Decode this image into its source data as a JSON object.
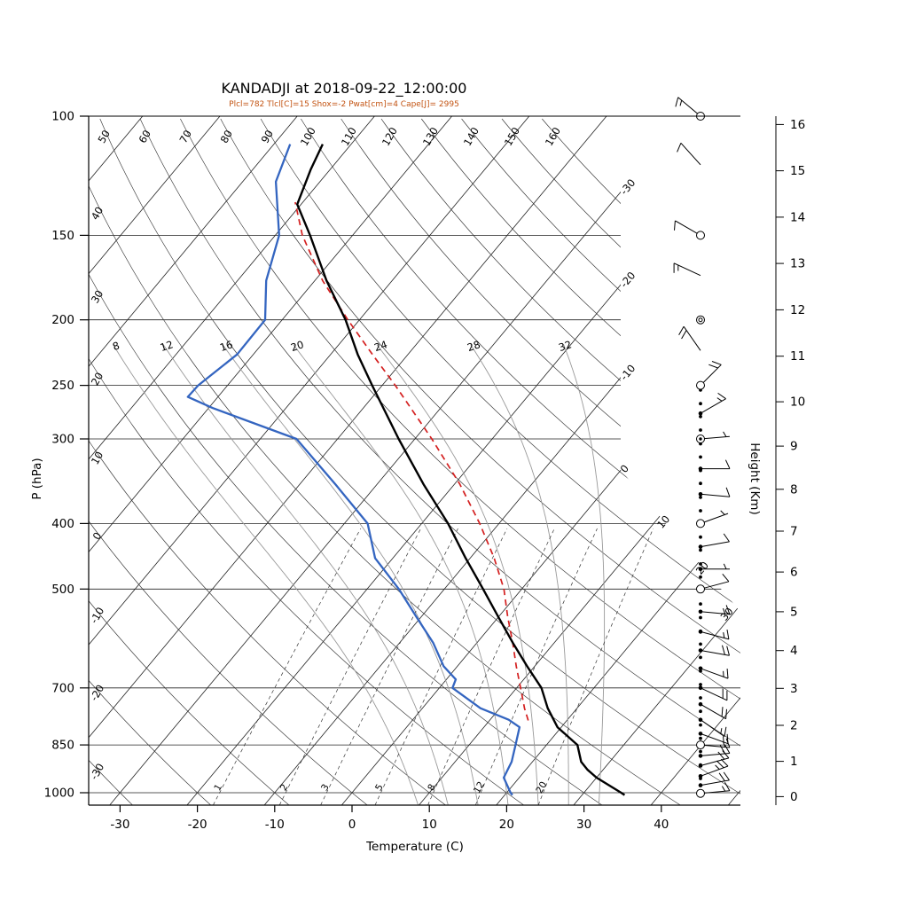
{
  "header": {
    "title": "KANDADJI at 2018-09-22_12:00:00",
    "subtitle": "Plcl=782 Tlcl[C]=15 Shox=-2 Pwat[cm]=4 Cape[J]= 2995",
    "subtitle_color": "#c35413"
  },
  "chart_data": {
    "type": "skewt-log-p-sounding",
    "title": "KANDADJI at 2018-09-22_12:00:00",
    "station": "KANDADJI",
    "valid_time": "2018-09-22_12:00:00",
    "params": {
      "Plcl_hPa": 782,
      "Tlcl_C": 15,
      "Shox": -2,
      "Pwat_cm": 4,
      "Cape_J": 2995
    },
    "xlabel": "Temperature (C)",
    "ylabel_left": "P (hPa)",
    "ylabel_right": "Height (Km)",
    "pressure_ticks_hPa": [
      100,
      150,
      200,
      250,
      300,
      400,
      500,
      700,
      850,
      1000
    ],
    "temperature_ticks_C": [
      -30,
      -20,
      -10,
      0,
      10,
      20,
      30,
      40
    ],
    "height_ticks_km": [
      0,
      1,
      2,
      3,
      4,
      5,
      6,
      7,
      8,
      9,
      10,
      11,
      12,
      13,
      14,
      15,
      16
    ],
    "isotherm_grid_range_C": [
      -110,
      60,
      10
    ],
    "dry_adiabat_range_C": [
      -30,
      160,
      10
    ],
    "isotherm_labels_right_C": [
      -30,
      -20,
      -10,
      0,
      10,
      20,
      30
    ],
    "dry_adiabat_labels_top_C": [
      50,
      60,
      70,
      80,
      90,
      100,
      110,
      120,
      130,
      140,
      150,
      160
    ],
    "dry_adiabat_labels_left_C": [
      40,
      30,
      20,
      10,
      0,
      -10,
      -20,
      -30
    ],
    "moist_adiabat_labels_C": [
      8,
      12,
      16,
      20,
      24,
      28,
      32
    ],
    "mixing_ratio_labels_gkg": [
      1,
      2,
      3,
      5,
      8,
      12,
      20
    ],
    "temperature_profile_p_t": [
      [
        1008,
        35.5
      ],
      [
        1000,
        34.8
      ],
      [
        950,
        30.0
      ],
      [
        925,
        28.0
      ],
      [
        900,
        26.3
      ],
      [
        850,
        24.0
      ],
      [
        800,
        19.5
      ],
      [
        750,
        16.2
      ],
      [
        700,
        13.2
      ],
      [
        650,
        9.0
      ],
      [
        600,
        4.6
      ],
      [
        550,
        0.0
      ],
      [
        500,
        -5.0
      ],
      [
        450,
        -10.6
      ],
      [
        400,
        -16.6
      ],
      [
        350,
        -24.0
      ],
      [
        300,
        -32.1
      ],
      [
        250,
        -41.3
      ],
      [
        225,
        -46.5
      ],
      [
        200,
        -51.8
      ],
      [
        175,
        -58.5
      ],
      [
        150,
        -65.5
      ],
      [
        135,
        -70.5
      ],
      [
        120,
        -72.5
      ],
      [
        110,
        -73.7
      ]
    ],
    "dewpoint_profile_p_t": [
      [
        1008,
        21.0
      ],
      [
        1000,
        20.5
      ],
      [
        950,
        18.0
      ],
      [
        900,
        17.3
      ],
      [
        850,
        16.0
      ],
      [
        800,
        14.6
      ],
      [
        780,
        12.4
      ],
      [
        750,
        7.5
      ],
      [
        700,
        1.7
      ],
      [
        680,
        1.2
      ],
      [
        650,
        -1.8
      ],
      [
        600,
        -5.7
      ],
      [
        550,
        -10.6
      ],
      [
        500,
        -15.9
      ],
      [
        450,
        -22.3
      ],
      [
        400,
        -27.0
      ],
      [
        350,
        -35.4
      ],
      [
        300,
        -45.3
      ],
      [
        270,
        -59.5
      ],
      [
        260,
        -63.9
      ],
      [
        250,
        -63.8
      ],
      [
        225,
        -62.1
      ],
      [
        200,
        -62.2
      ],
      [
        175,
        -66.3
      ],
      [
        150,
        -69.5
      ],
      [
        125,
        -75.7
      ],
      [
        110,
        -77.9
      ]
    ],
    "parcel_profile_p_t": [
      [
        782,
        15.0
      ],
      [
        750,
        13.2
      ],
      [
        700,
        10.5
      ],
      [
        650,
        7.6
      ],
      [
        600,
        4.6
      ],
      [
        550,
        1.2
      ],
      [
        500,
        -2.3
      ],
      [
        450,
        -6.9
      ],
      [
        400,
        -12.5
      ],
      [
        350,
        -19.3
      ],
      [
        300,
        -27.8
      ],
      [
        250,
        -38.3
      ],
      [
        225,
        -44.6
      ],
      [
        200,
        -51.5
      ],
      [
        175,
        -59.0
      ],
      [
        150,
        -66.5
      ],
      [
        134,
        -71.0
      ]
    ],
    "wind_barbs": [
      {
        "p": 100,
        "spd_kt": 15,
        "dir_deg": 310,
        "marker": "circle"
      },
      {
        "p": 118,
        "spd_kt": 10,
        "dir_deg": 318,
        "marker": "none"
      },
      {
        "p": 150,
        "spd_kt": 10,
        "dir_deg": 300,
        "marker": "circle"
      },
      {
        "p": 172,
        "spd_kt": 15,
        "dir_deg": 295,
        "marker": "none"
      },
      {
        "p": 200,
        "spd_kt": 0,
        "dir_deg": 0,
        "marker": "calm"
      },
      {
        "p": 222,
        "spd_kt": 20,
        "dir_deg": 325,
        "marker": "none"
      },
      {
        "p": 250,
        "spd_kt": 20,
        "dir_deg": 45,
        "marker": "circle"
      },
      {
        "p": 275,
        "spd_kt": 15,
        "dir_deg": 60,
        "marker": "dot"
      },
      {
        "p": 300,
        "spd_kt": 5,
        "dir_deg": 85,
        "marker": "circledot"
      },
      {
        "p": 332,
        "spd_kt": 10,
        "dir_deg": 90,
        "marker": "dot"
      },
      {
        "p": 362,
        "spd_kt": 10,
        "dir_deg": 95,
        "marker": "dot"
      },
      {
        "p": 400,
        "spd_kt": 5,
        "dir_deg": 70,
        "marker": "circle"
      },
      {
        "p": 433,
        "spd_kt": 10,
        "dir_deg": 80,
        "marker": "dot"
      },
      {
        "p": 467,
        "spd_kt": 5,
        "dir_deg": 90,
        "marker": "dot"
      },
      {
        "p": 500,
        "spd_kt": 10,
        "dir_deg": 75,
        "marker": "circle"
      },
      {
        "p": 540,
        "spd_kt": 15,
        "dir_deg": 95,
        "marker": "dot"
      },
      {
        "p": 578,
        "spd_kt": 15,
        "dir_deg": 105,
        "marker": "dot"
      },
      {
        "p": 616,
        "spd_kt": 20,
        "dir_deg": 100,
        "marker": "dot"
      },
      {
        "p": 655,
        "spd_kt": 15,
        "dir_deg": 110,
        "marker": "dot"
      },
      {
        "p": 700,
        "spd_kt": 20,
        "dir_deg": 115,
        "marker": "dot"
      },
      {
        "p": 740,
        "spd_kt": 20,
        "dir_deg": 120,
        "marker": "dot"
      },
      {
        "p": 780,
        "spd_kt": 15,
        "dir_deg": 125,
        "marker": "dot"
      },
      {
        "p": 818,
        "spd_kt": 15,
        "dir_deg": 110,
        "marker": "dot"
      },
      {
        "p": 850,
        "spd_kt": 15,
        "dir_deg": 95,
        "marker": "circle"
      },
      {
        "p": 882,
        "spd_kt": 20,
        "dir_deg": 85,
        "marker": "dot"
      },
      {
        "p": 912,
        "spd_kt": 20,
        "dir_deg": 75,
        "marker": "dot"
      },
      {
        "p": 945,
        "spd_kt": 25,
        "dir_deg": 70,
        "marker": "dot"
      },
      {
        "p": 975,
        "spd_kt": 20,
        "dir_deg": 80,
        "marker": "dot"
      },
      {
        "p": 1002,
        "spd_kt": 15,
        "dir_deg": 85,
        "marker": "circle"
      }
    ],
    "level_dot_pressures": [
      254,
      266,
      278,
      291,
      305,
      319,
      334,
      349,
      366,
      383,
      400,
      419,
      438,
      459,
      480,
      503,
      526,
      551,
      577,
      603,
      631,
      661,
      692,
      724,
      758,
      794,
      831,
      869,
      910,
      953,
      998
    ],
    "colors": {
      "temperature_line": "#000000",
      "dewpoint_line": "#3465c0",
      "parcel_line": "#d42020",
      "grid_line": "#222222",
      "adiabat_line": "#333333",
      "moist_adiabat_line": "#999999",
      "axis": "#000000"
    }
  }
}
